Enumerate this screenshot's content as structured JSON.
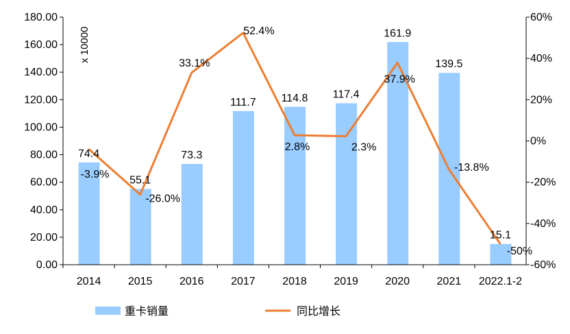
{
  "chart_data": {
    "type": "bar+line",
    "categories": [
      "2014",
      "2015",
      "2016",
      "2017",
      "2018",
      "2019",
      "2020",
      "2021",
      "2022.1-2"
    ],
    "series": [
      {
        "name": "重卡销量",
        "type": "bar",
        "axis": "left",
        "color": "#99CCFF",
        "values": [
          74.4,
          55.1,
          73.3,
          111.7,
          114.8,
          117.4,
          161.9,
          139.5,
          15.1
        ],
        "labels": [
          "74.4",
          "55.1",
          "73.3",
          "111.7",
          "114.8",
          "117.4",
          "161.9",
          "139.5",
          "15.1"
        ]
      },
      {
        "name": "同比增长",
        "type": "line",
        "axis": "right",
        "color": "#ED7D31",
        "values": [
          -3.9,
          -26.0,
          33.1,
          52.4,
          2.8,
          2.3,
          37.9,
          -13.8,
          -50
        ],
        "labels": [
          "-3.9%",
          "-26.0%",
          "33.1%",
          "52.4%",
          "2.8%",
          "2.3%",
          "37.9%",
          "-13.8%",
          "-50%"
        ]
      }
    ],
    "left_axis": {
      "range": [
        0,
        180
      ],
      "ticks": [
        "0.00",
        "20.00",
        "40.00",
        "60.00",
        "80.00",
        "100.00",
        "120.00",
        "140.00",
        "160.00",
        "180.00"
      ],
      "unit_label": "x 10000"
    },
    "right_axis": {
      "range": [
        -60,
        60
      ],
      "ticks": [
        "-60%",
        "-40%",
        "-20%",
        "0%",
        "20%",
        "40%",
        "60%"
      ]
    },
    "grid": false,
    "legend": {
      "placement": "bottom",
      "items": [
        "重卡销量",
        "同比增长"
      ]
    }
  }
}
